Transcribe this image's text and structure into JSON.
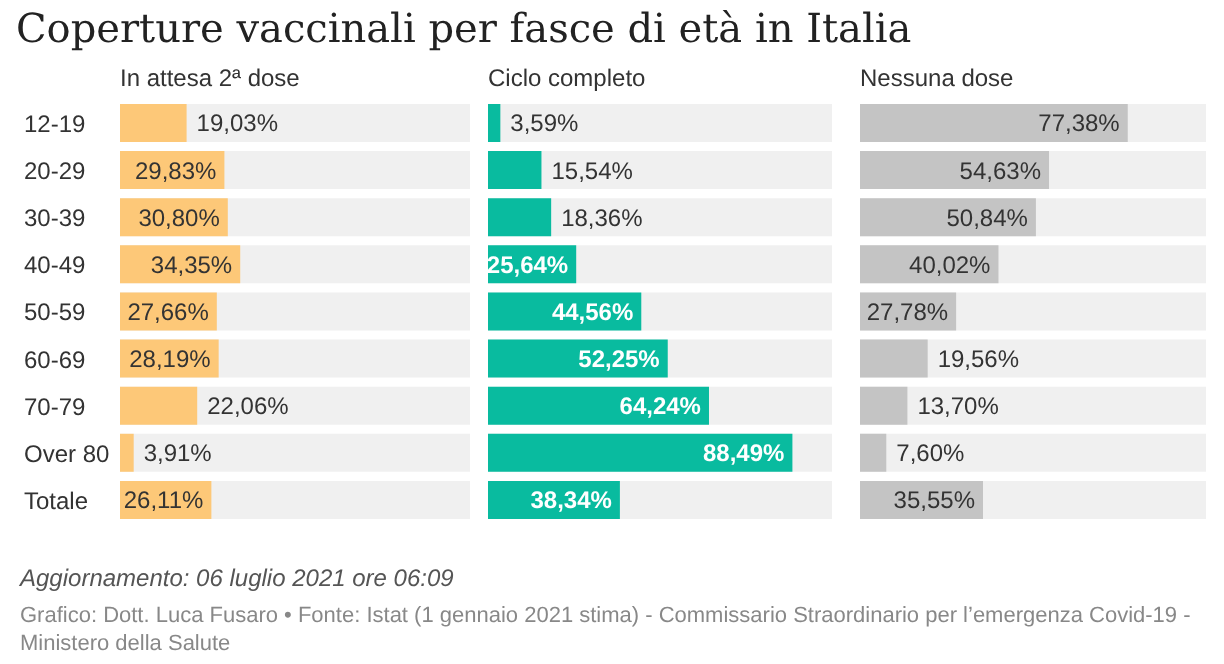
{
  "chart_data": [
    {
      "type": "bar",
      "title": "Coperture vaccinali per fasce di età in Italia",
      "subtitle": "In attesa 2ª dose",
      "orientation": "horizontal",
      "categories": [
        "12-19",
        "20-29",
        "30-39",
        "40-49",
        "50-59",
        "60-69",
        "70-79",
        "Over 80",
        "Totale"
      ],
      "values": [
        19.03,
        29.83,
        30.8,
        34.35,
        27.66,
        28.19,
        22.06,
        3.91,
        26.11
      ],
      "value_labels": [
        "19,03%",
        "29,83%",
        "30,80%",
        "34,35%",
        "27,66%",
        "28,19%",
        "22,06%",
        "3,91%",
        "26,11%"
      ],
      "color": "#fdc878",
      "xlim": [
        0,
        100
      ],
      "tick_labels": "y",
      "annotations": [
        "Aggiornamento: 06 luglio 2021 ore 06:09",
        "Grafico: Dott. Luca Fusaro • Fonte: Istat (1 gennaio 2021 stima) - Commissario Straordinario per l’emergenza Covid-19 - Ministero della Salute"
      ]
    },
    {
      "type": "bar",
      "subtitle": "Ciclo completo",
      "orientation": "horizontal",
      "values": [
        3.59,
        15.54,
        18.36,
        25.64,
        44.56,
        52.25,
        64.24,
        88.49,
        38.34
      ],
      "value_labels": [
        "3,59%",
        "15,54%",
        "18,36%",
        "25,64%",
        "44,56%",
        "52,25%",
        "64,24%",
        "88,49%",
        "38,34%"
      ],
      "color": "#09bb9f",
      "xlim": [
        0,
        100
      ],
      "tick_labels": false
    },
    {
      "type": "bar",
      "subtitle": "Nessuna dose",
      "orientation": "horizontal",
      "values": [
        77.38,
        54.63,
        50.84,
        40.02,
        27.78,
        19.56,
        13.7,
        7.6,
        35.55
      ],
      "value_labels": [
        "77,38%",
        "54,63%",
        "50,84%",
        "40,02%",
        "27,78%",
        "19,56%",
        "13,70%",
        "7,60%",
        "35,55%"
      ],
      "color": "#c4c4c4",
      "xlim": [
        0,
        100
      ],
      "tick_labels": false
    }
  ]
}
